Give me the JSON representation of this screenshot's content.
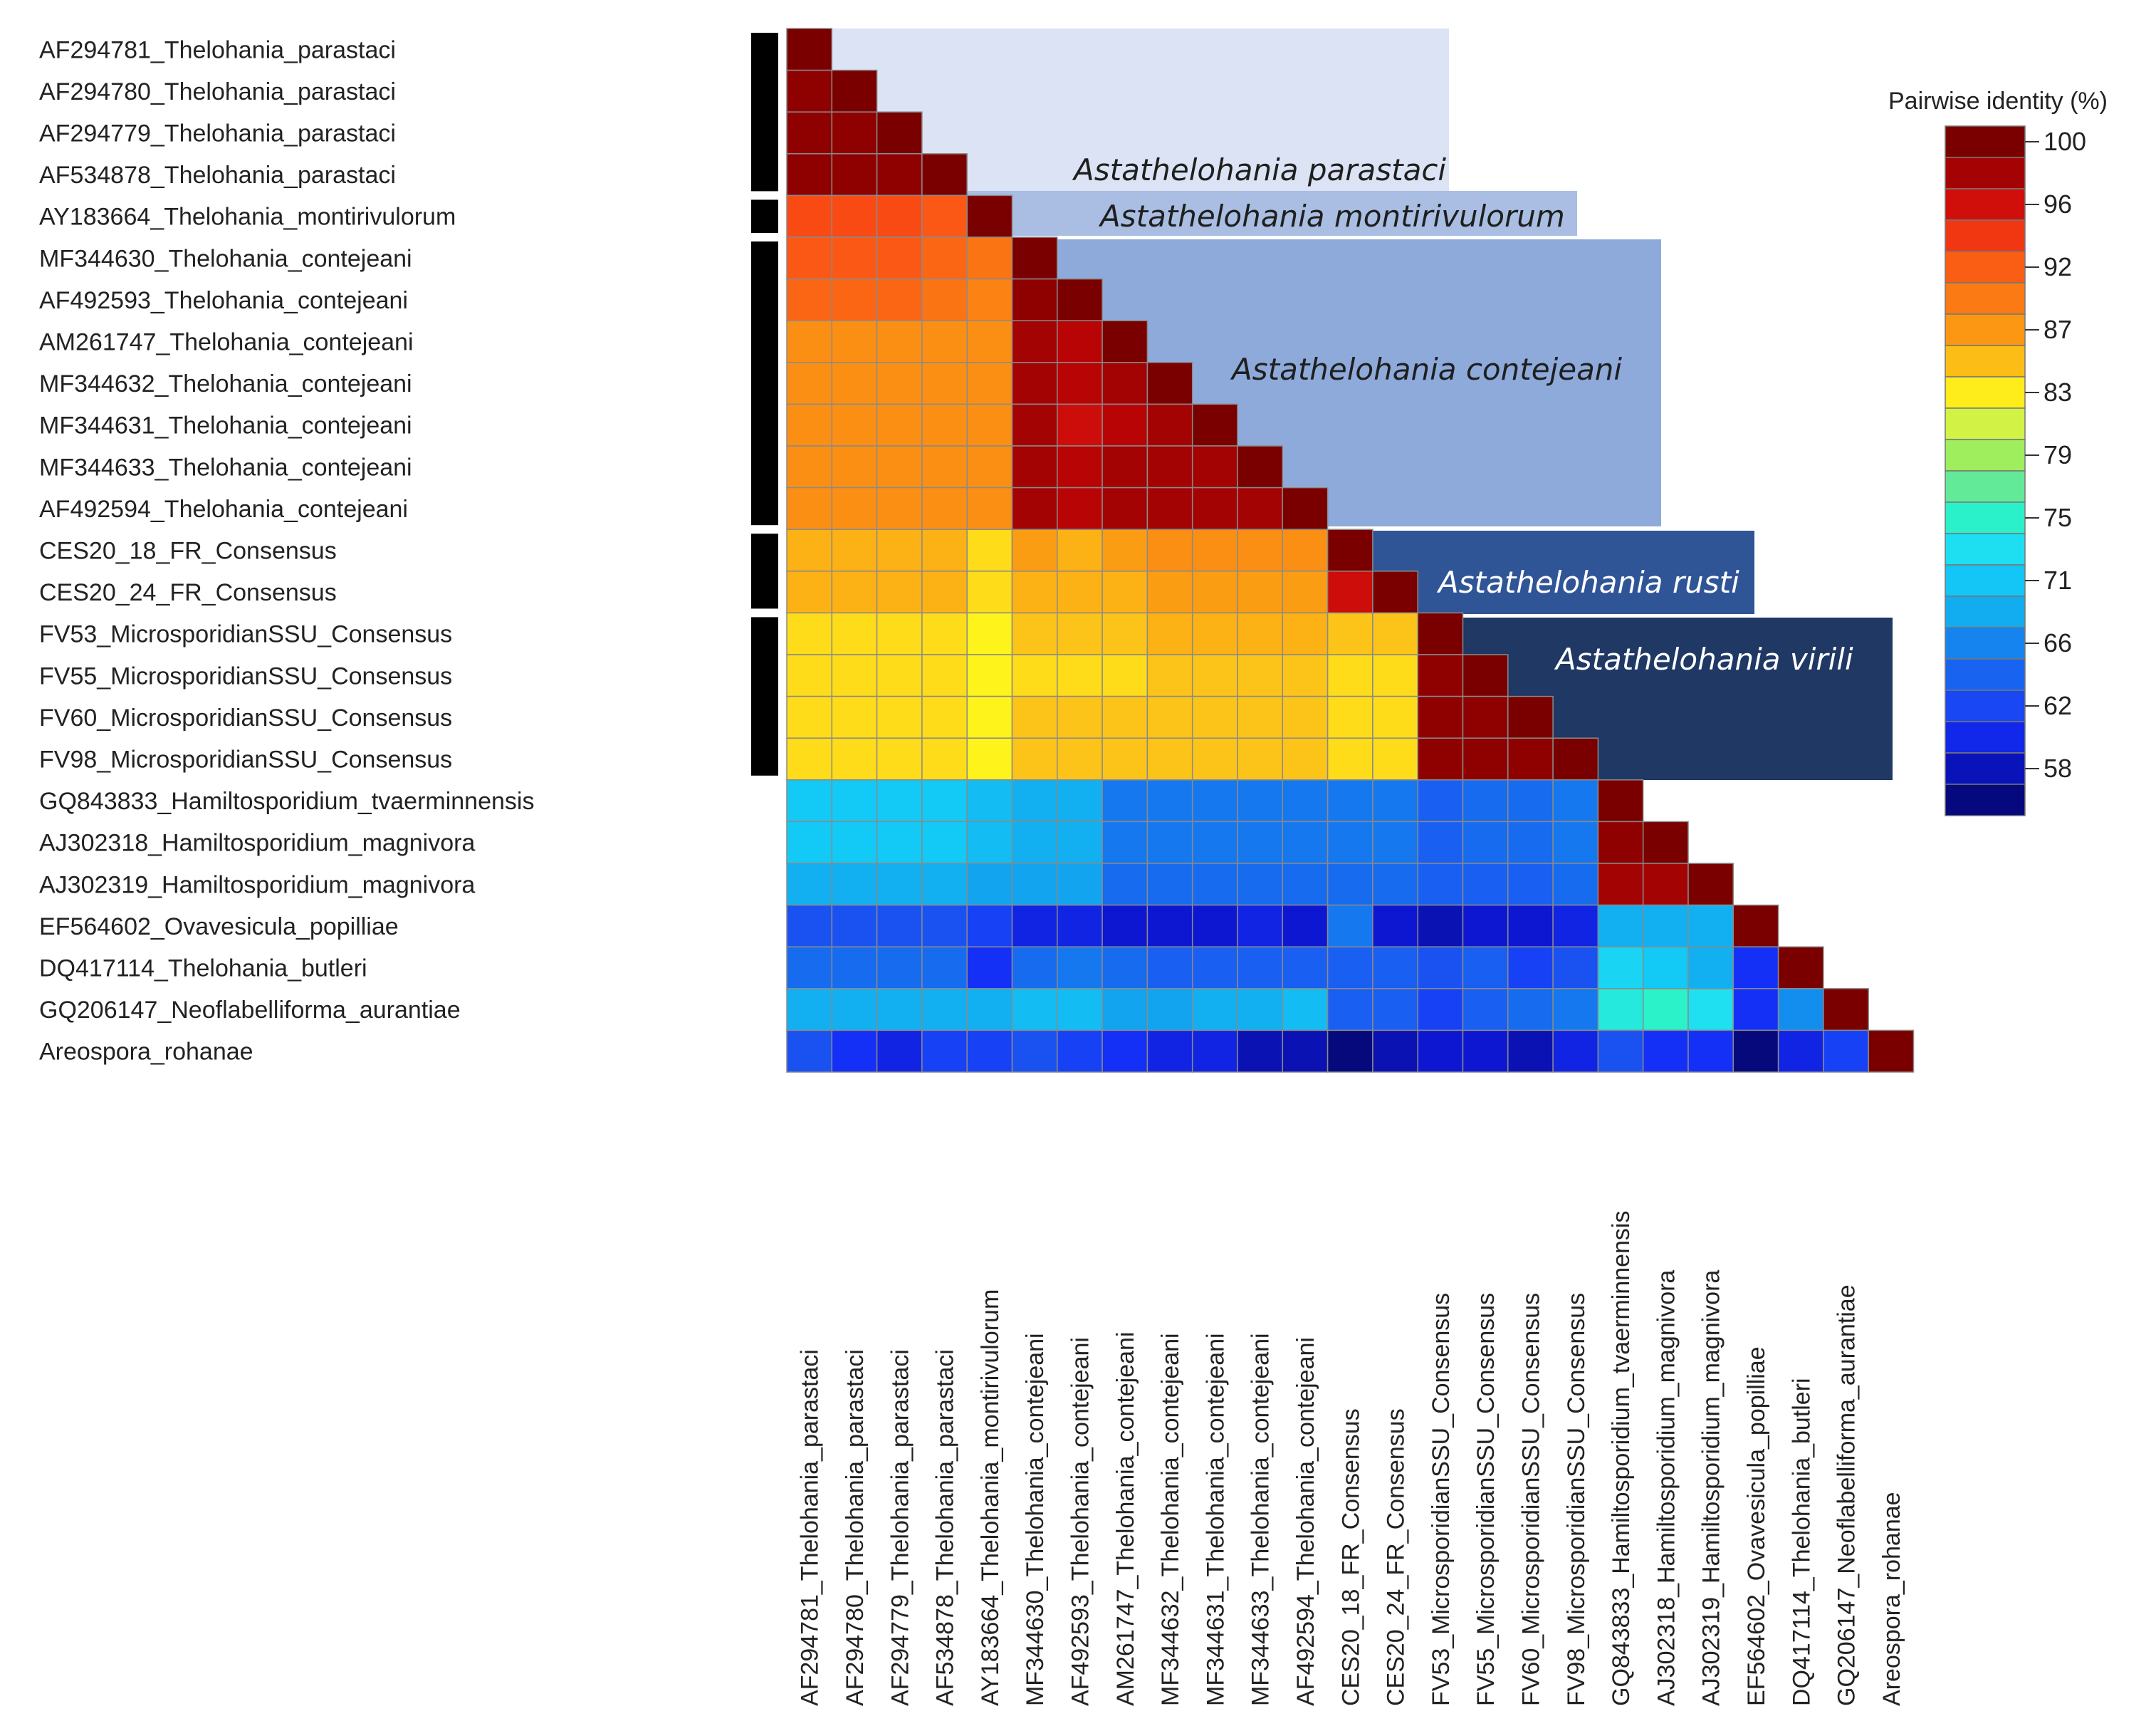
{
  "chart_data": {
    "type": "heatmap",
    "title": "",
    "legend_title": "Pairwise identity (%)",
    "legend_ticks": [
      100,
      96,
      92,
      87,
      83,
      79,
      75,
      71,
      66,
      62,
      58
    ],
    "sequences": [
      "AF294781_Thelohania_parastaci",
      "AF294780_Thelohania_parastaci",
      "AF294779_Thelohania_parastaci",
      "AF534878_Thelohania_parastaci",
      "AY183664_Thelohania_montirivulorum",
      "MF344630_Thelohania_contejeani",
      "AF492593_Thelohania_contejeani",
      "AM261747_Thelohania_contejeani",
      "MF344632_Thelohania_contejeani",
      "MF344631_Thelohania_contejeani",
      "MF344633_Thelohania_contejeani",
      "AF492594_Thelohania_contejeani",
      "CES20_18_FR_Consensus",
      "CES20_24_FR_Consensus",
      "FV53_MicrosporidianSSU_Consensus",
      "FV55_MicrosporidianSSU_Consensus",
      "FV60_MicrosporidianSSU_Consensus",
      "FV98_MicrosporidianSSU_Consensus",
      "GQ843833_Hamiltosporidium_tvaerminnensis",
      "AJ302318_Hamiltosporidium_magnivora",
      "AJ302319_Hamiltosporidium_magnivora",
      "EF564602_Ovavesicula_popilliae",
      "DQ417114_Thelohania_butleri",
      "GQ206147_Neoflabelliforma_aurantiae",
      "Areospora_rohanae"
    ],
    "matrix": [
      [
        100
      ],
      [
        99,
        100
      ],
      [
        99,
        99,
        100
      ],
      [
        99,
        99,
        99,
        100
      ],
      [
        93,
        93,
        93,
        92,
        100
      ],
      [
        92,
        92,
        92,
        91,
        90,
        100
      ],
      [
        91,
        91,
        91,
        90,
        89,
        99,
        100
      ],
      [
        88,
        88,
        88,
        88,
        88,
        98,
        97,
        100
      ],
      [
        88,
        88,
        88,
        88,
        88,
        98,
        97,
        98,
        100
      ],
      [
        88,
        88,
        88,
        88,
        88,
        98,
        96,
        97,
        98,
        100
      ],
      [
        88,
        88,
        88,
        88,
        88,
        98,
        97,
        98,
        98,
        98,
        100
      ],
      [
        88,
        88,
        88,
        88,
        88,
        98,
        97,
        98,
        98,
        98,
        98,
        100
      ],
      [
        86,
        86,
        86,
        86,
        84,
        87,
        86,
        87,
        88,
        88,
        88,
        88,
        100
      ],
      [
        86,
        86,
        86,
        86,
        84,
        86,
        86,
        86,
        87,
        87,
        87,
        87,
        96,
        100
      ],
      [
        84,
        84,
        84,
        84,
        83,
        85,
        85,
        85,
        86,
        86,
        86,
        86,
        85,
        85,
        100
      ],
      [
        84,
        84,
        84,
        84,
        83,
        84,
        84,
        84,
        85,
        85,
        85,
        85,
        84,
        84,
        99,
        100
      ],
      [
        84,
        84,
        84,
        84,
        83,
        85,
        85,
        85,
        85,
        85,
        85,
        85,
        84,
        84,
        99,
        99,
        100
      ],
      [
        84,
        84,
        84,
        84,
        83,
        85,
        85,
        85,
        85,
        85,
        85,
        85,
        84,
        84,
        99,
        99,
        99,
        100
      ],
      [
        71,
        71,
        71,
        71,
        70,
        69,
        69,
        66,
        66,
        66,
        66,
        66,
        66,
        66,
        64,
        65,
        65,
        66,
        100
      ],
      [
        71,
        71,
        71,
        71,
        70,
        69,
        69,
        66,
        66,
        66,
        66,
        66,
        66,
        66,
        64,
        65,
        65,
        66,
        99,
        100
      ],
      [
        69,
        69,
        69,
        69,
        68,
        68,
        68,
        65,
        65,
        65,
        65,
        65,
        65,
        65,
        64,
        64,
        64,
        65,
        98,
        98,
        100
      ],
      [
        63,
        63,
        63,
        63,
        62,
        60,
        60,
        59,
        59,
        59,
        60,
        59,
        66,
        59,
        58,
        59,
        59,
        60,
        69,
        69,
        69,
        100
      ],
      [
        65,
        65,
        65,
        65,
        61,
        65,
        66,
        65,
        64,
        64,
        64,
        64,
        64,
        64,
        63,
        64,
        62,
        63,
        72,
        71,
        69,
        61,
        100
      ],
      [
        69,
        69,
        69,
        69,
        69,
        70,
        70,
        68,
        68,
        69,
        69,
        70,
        64,
        64,
        62,
        64,
        65,
        66,
        74,
        75,
        73,
        61,
        67,
        100
      ],
      [
        63,
        61,
        60,
        62,
        62,
        63,
        62,
        61,
        60,
        60,
        58,
        58,
        56,
        58,
        59,
        59,
        58,
        60,
        63,
        61,
        61,
        56,
        60,
        62,
        100
      ]
    ],
    "clades": [
      {
        "name": "Astathelohania parastaci",
        "members": [
          0,
          3
        ]
      },
      {
        "name": "Astathelohania montirivulorum",
        "members": [
          4,
          4
        ]
      },
      {
        "name": "Astathelohania contejeani",
        "members": [
          5,
          11
        ]
      },
      {
        "name": "Astathelohania rusti",
        "members": [
          12,
          13
        ]
      },
      {
        "name": "Astathelohania virili",
        "members": [
          14,
          17
        ]
      }
    ]
  }
}
